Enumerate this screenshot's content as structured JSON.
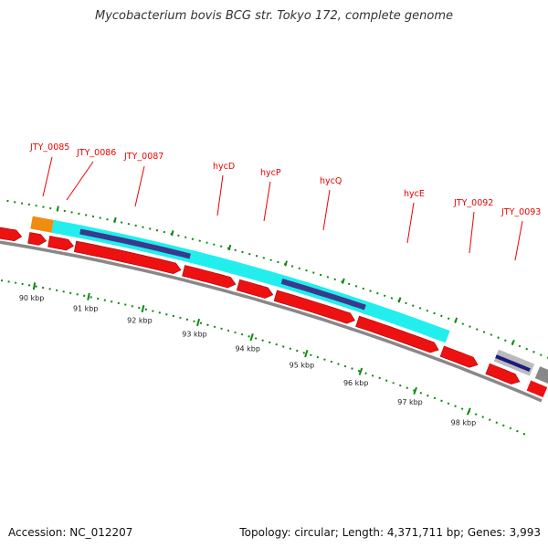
{
  "title": "Mycobacterium bovis BCG str. Tokyo 172, complete genome",
  "accession_text": "Accession: NC_012207",
  "topology": {
    "prefix": "Topology: circular; Length: ",
    "length": "4,371,711 bp",
    "genes_prefix": "; Genes: ",
    "genes": "3,993"
  },
  "colors": {
    "cds": "#ee1111",
    "pseudo_orange": "#f08c10",
    "domain_cyan": "#22eeee",
    "domain_navy": "#3a3a8c",
    "grey_feature": "#888888",
    "label_red": "#ee0000",
    "tick_green": "#118811",
    "backbone": "#888888"
  },
  "gene_labels": [
    "JTY_0085",
    "JTY_0086",
    "JTY_0087",
    "hycD",
    "hycP",
    "hycQ",
    "hycE",
    "JTY_0092",
    "JTY_0093"
  ],
  "scale_labels": [
    "90 kbp",
    "91 kbp",
    "92 kbp",
    "93 kbp",
    "94 kbp",
    "95 kbp",
    "96 kbp",
    "97 kbp",
    "98 kbp"
  ]
}
